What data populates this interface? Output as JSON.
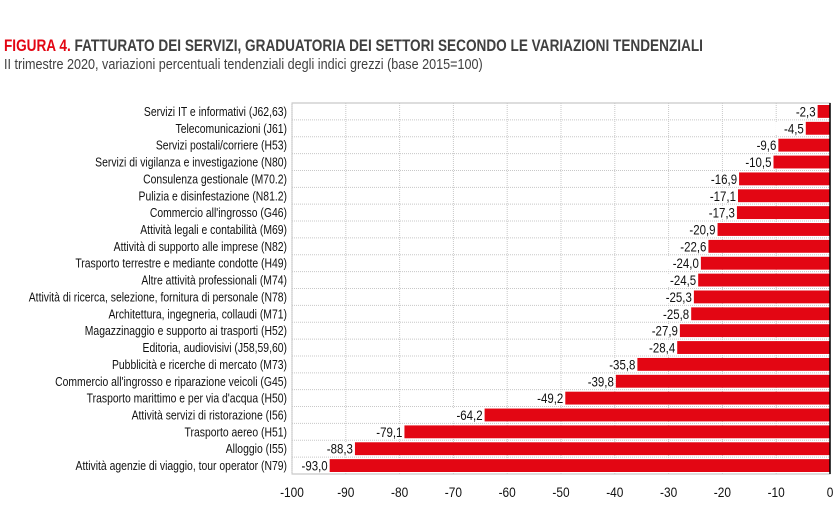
{
  "title_prefix": "FIGURA 4.",
  "title": "FATTURATO DEI SERVIZI, GRADUATORIA DEI SETTORI SECONDO LE VARIAZIONI TENDENZIALI",
  "subtitle": "II trimestre 2020, variazioni percentuali tendenziali degli indici grezzi (base 2015=100)",
  "colors": {
    "bar": "#e30613",
    "title_accent": "#e30613",
    "text": "#404040"
  },
  "chart_data": {
    "type": "bar",
    "orientation": "horizontal",
    "categories": [
      "Servizi IT e informativi (J62,63)",
      "Telecomunicazioni (J61)",
      "Servizi postali/corriere (H53)",
      "Servizi di vigilanza e investigazione (N80)",
      "Consulenza gestionale (M70.2)",
      "Pulizia e disinfestazione (N81.2)",
      "Commercio all'ingrosso (G46)",
      "Attività legali e contabilità (M69)",
      "Attività di supporto alle imprese (N82)",
      "Trasporto terrestre e mediante condotte (H49)",
      "Altre attività professionali (M74)",
      "Attività di ricerca, selezione, fornitura di personale (N78)",
      "Architettura, ingegneria, collaudi (M71)",
      "Magazzinaggio e supporto ai trasporti (H52)",
      "Editoria, audiovisivi (J58,59,60)",
      "Pubblicità e ricerche di mercato (M73)",
      "Commercio all'ingrosso e riparazione veicoli (G45)",
      "Trasporto marittimo e per via d'acqua (H50)",
      "Attività servizi di ristorazione (I56)",
      "Trasporto aereo (H51)",
      "Alloggio (I55)",
      "Attività agenzie di viaggio, tour operator (N79)"
    ],
    "values": [
      -2.3,
      -4.5,
      -9.6,
      -10.5,
      -16.9,
      -17.1,
      -17.3,
      -20.9,
      -22.6,
      -24.0,
      -24.5,
      -25.3,
      -25.8,
      -27.9,
      -28.4,
      -35.8,
      -39.8,
      -49.2,
      -64.2,
      -79.1,
      -88.3,
      -93.0
    ],
    "data_labels": [
      "-2,3",
      "-4,5",
      "-9,6",
      "-10,5",
      "-16,9",
      "-17,1",
      "-17,3",
      "-20,9",
      "-22,6",
      "-24,0",
      "-24,5",
      "-25,3",
      "-25,8",
      "-27,9",
      "-28,4",
      "-35,8",
      "-39,8",
      "-49,2",
      "-64,2",
      "-79,1",
      "-88,3",
      "-93,0"
    ],
    "xlim": [
      -100,
      0
    ],
    "xticks": [
      -100,
      -90,
      -80,
      -70,
      -60,
      -50,
      -40,
      -30,
      -20,
      -10,
      0
    ],
    "xtick_labels": [
      "-100",
      "-90",
      "-80",
      "-70",
      "-60",
      "-50",
      "-40",
      "-30",
      "-20",
      "-10",
      "0"
    ],
    "grid": true,
    "legend": "none"
  }
}
